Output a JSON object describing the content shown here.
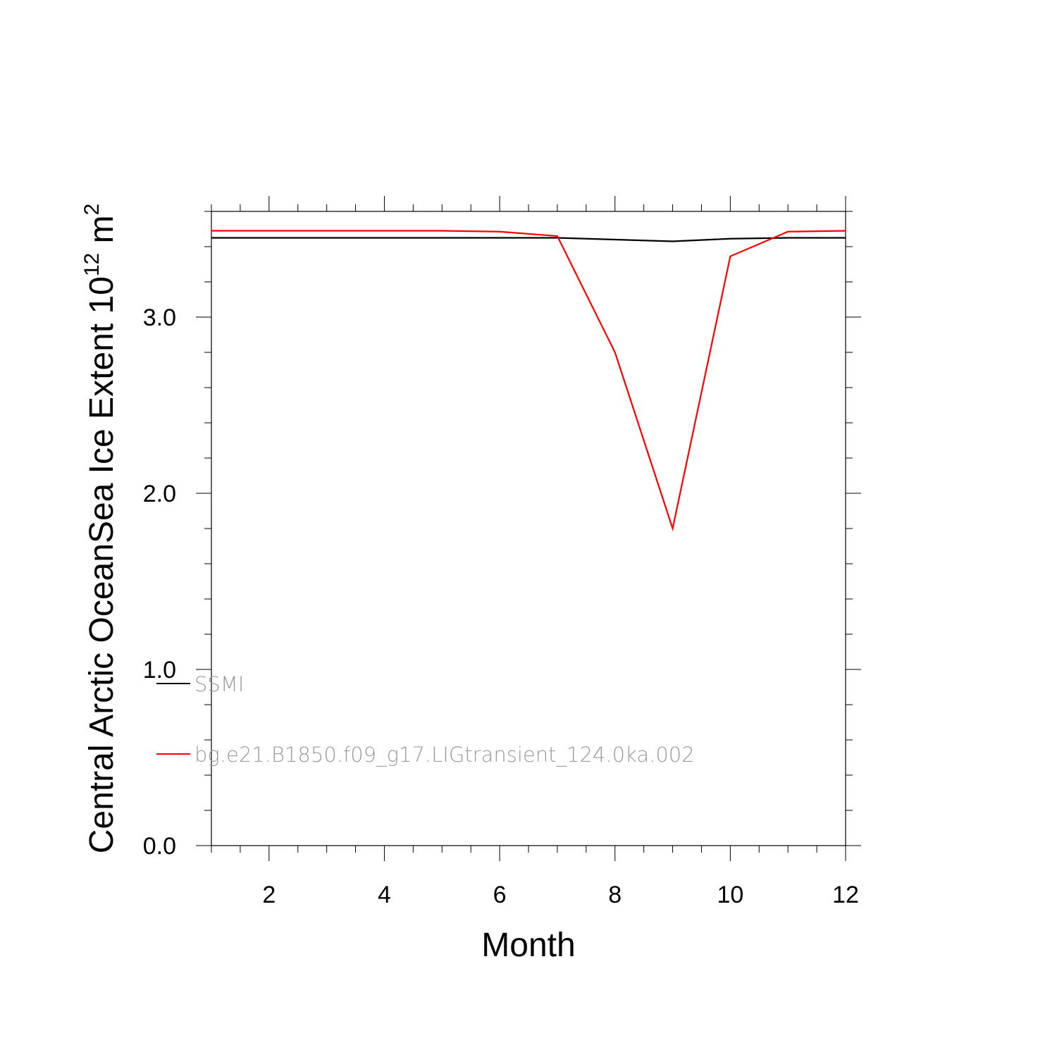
{
  "chart_data": {
    "type": "line",
    "title": "",
    "xlabel": "Month",
    "ylabel_main": "Central Arctic OceanSea Ice Extent 10",
    "ylabel_exp": "12",
    "ylabel_unit": " m",
    "ylabel_unit_exp": "2",
    "xlim": [
      1,
      12
    ],
    "ylim": [
      0,
      3.6
    ],
    "x_ticks": [
      2,
      4,
      6,
      8,
      10,
      12
    ],
    "y_ticks": [
      "0.0",
      "1.0",
      "2.0",
      "3.0"
    ],
    "x": [
      1,
      2,
      3,
      4,
      5,
      6,
      7,
      8,
      9,
      10,
      11,
      12
    ],
    "series": [
      {
        "name": "SSMI",
        "color": "#000000",
        "values": [
          3.45,
          3.45,
          3.45,
          3.45,
          3.45,
          3.45,
          3.45,
          3.44,
          3.43,
          3.445,
          3.45,
          3.45
        ]
      },
      {
        "name": "bg.e21.B1850.f09_g17.LIGtransient_124.0ka.002",
        "color": "#ff0000",
        "values": [
          3.49,
          3.49,
          3.49,
          3.49,
          3.49,
          3.485,
          3.46,
          2.8,
          1.8,
          3.345,
          3.485,
          3.49
        ]
      }
    ],
    "grid": false,
    "legend_position": "bottom-left"
  }
}
